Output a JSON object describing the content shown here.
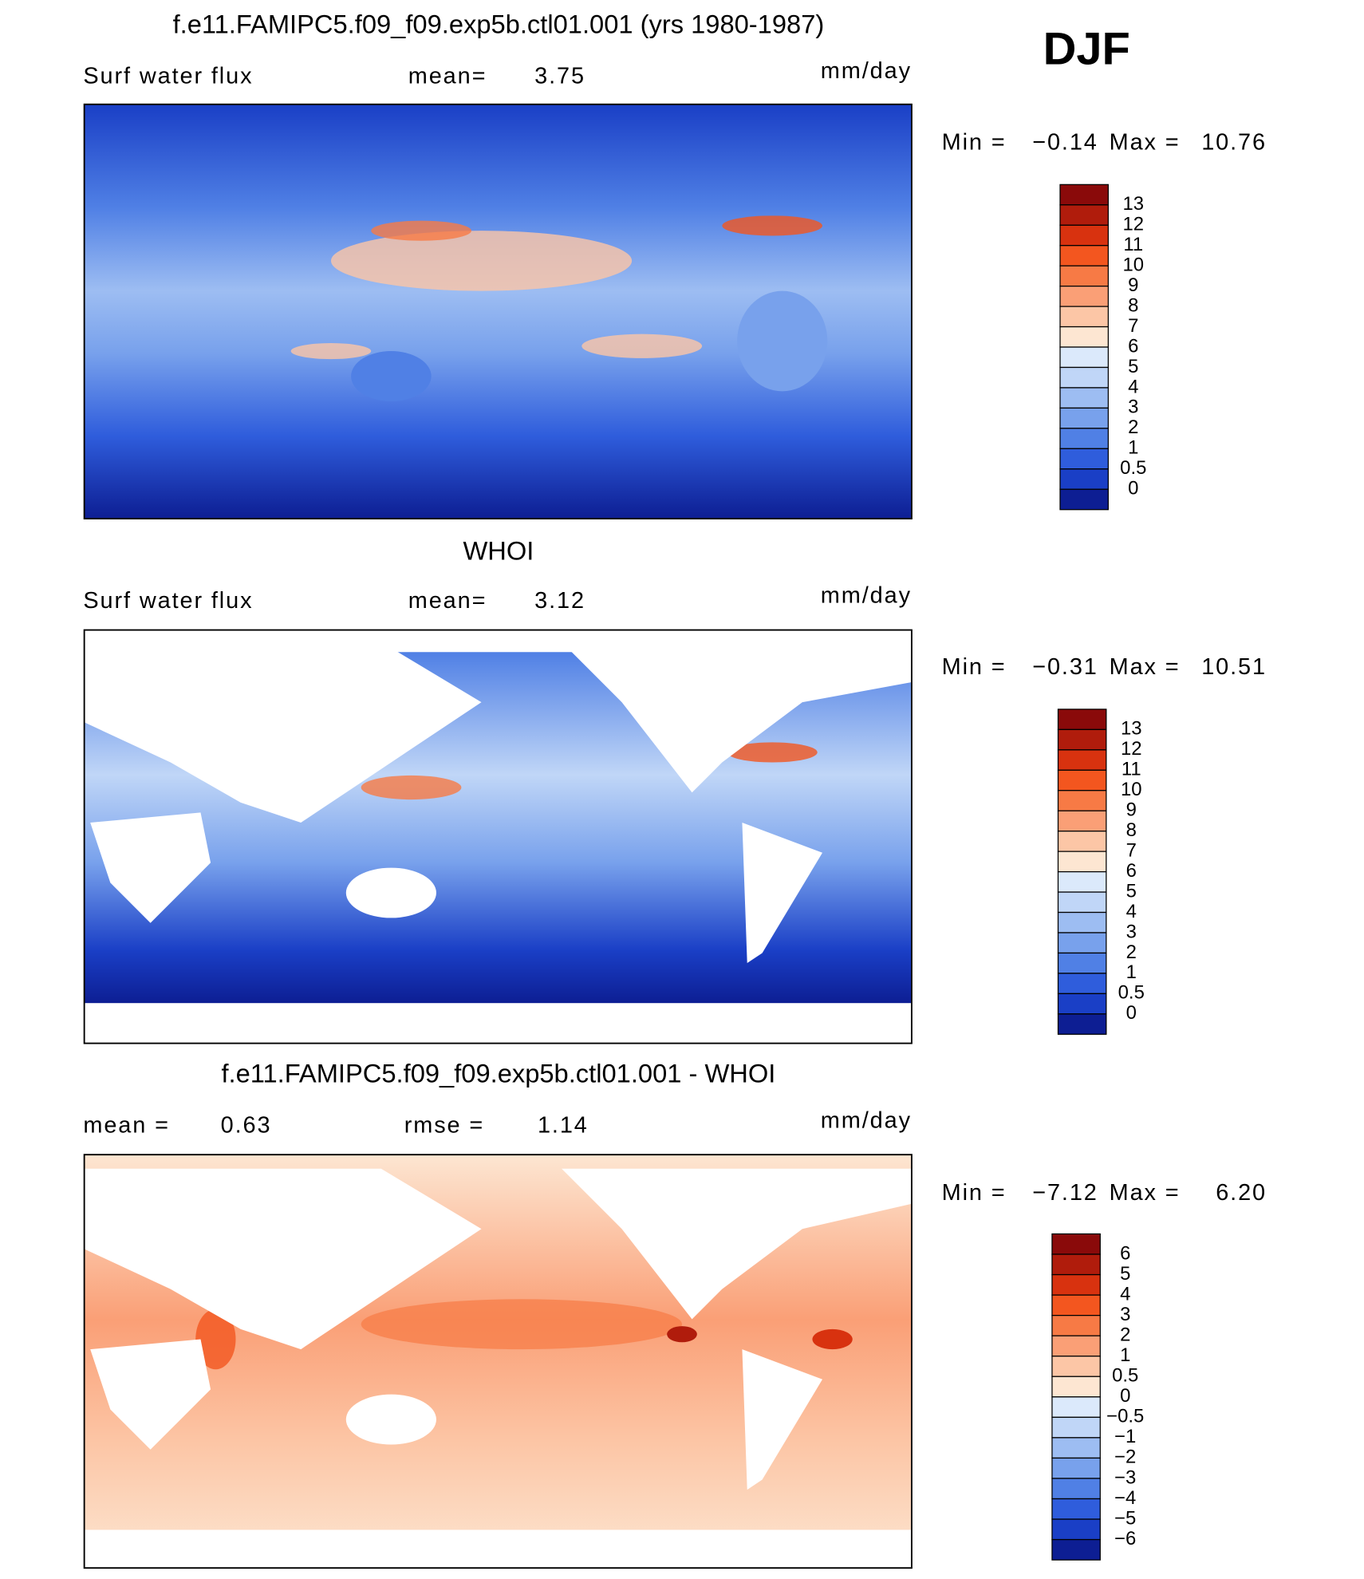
{
  "season": "DJF",
  "panels": [
    {
      "title": "f.e11.FAMIPC5.f09_f09.exp5b.ctl01.001 (yrs 1980-1987)",
      "variable": "Surf water flux",
      "mean_label": "mean=",
      "mean": "3.75",
      "units": "mm/day",
      "min_label": "Min =",
      "min": "−0.14",
      "max_label": "Max =",
      "max": "10.76",
      "colorbar": {
        "levels": [
          "13",
          "12",
          "11",
          "10",
          "9",
          "8",
          "7",
          "6",
          "5",
          "4",
          "3",
          "2",
          "1",
          "0.5",
          "0"
        ],
        "colors": [
          "#8a0a0a",
          "#b01c0c",
          "#d8320f",
          "#f3561f",
          "#f77a45",
          "#fa9f76",
          "#fcc6a6",
          "#fde6d2",
          "#dbe9fb",
          "#c0d6f7",
          "#9dbdf2",
          "#78a1ec",
          "#5080e5",
          "#2f5ddc",
          "#1a3fc6",
          "#0d1e93"
        ]
      }
    },
    {
      "title": "WHOI",
      "variable": "Surf water flux",
      "mean_label": "mean=",
      "mean": "3.12",
      "units": "mm/day",
      "min_label": "Min =",
      "min": "−0.31",
      "max_label": "Max =",
      "max": "10.51",
      "colorbar": {
        "levels": [
          "13",
          "12",
          "11",
          "10",
          "9",
          "8",
          "7",
          "6",
          "5",
          "4",
          "3",
          "2",
          "1",
          "0.5",
          "0"
        ],
        "colors": [
          "#8a0a0a",
          "#b01c0c",
          "#d8320f",
          "#f3561f",
          "#f77a45",
          "#fa9f76",
          "#fcc6a6",
          "#fde6d2",
          "#dbe9fb",
          "#c0d6f7",
          "#9dbdf2",
          "#78a1ec",
          "#5080e5",
          "#2f5ddc",
          "#1a3fc6",
          "#0d1e93"
        ]
      }
    },
    {
      "title": "f.e11.FAMIPC5.f09_f09.exp5b.ctl01.001 - WHOI",
      "mean_label": "mean =",
      "mean": "0.63",
      "rmse_label": "rmse =",
      "rmse": "1.14",
      "units": "mm/day",
      "min_label": "Min =",
      "min": "−7.12",
      "max_label": "Max =",
      "max": "6.20",
      "colorbar": {
        "levels": [
          "6",
          "5",
          "4",
          "3",
          "2",
          "1",
          "0.5",
          "0",
          "−0.5",
          "−1",
          "−2",
          "−3",
          "−4",
          "−5",
          "−6"
        ],
        "colors": [
          "#8a0a0a",
          "#b01c0c",
          "#d8320f",
          "#f3561f",
          "#f77a45",
          "#fa9f76",
          "#fcc6a6",
          "#fde6d2",
          "#dbe9fb",
          "#c0d6f7",
          "#9dbdf2",
          "#78a1ec",
          "#5080e5",
          "#2f5ddc",
          "#1a3fc6",
          "#0d1e93"
        ]
      }
    }
  ]
}
